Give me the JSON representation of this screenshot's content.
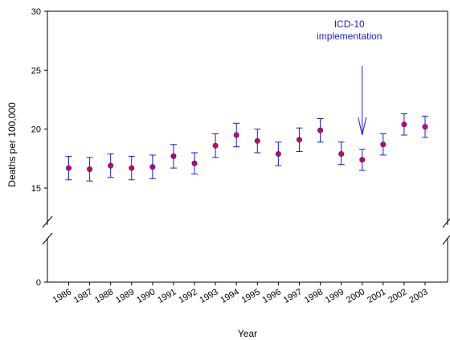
{
  "chart_data": {
    "type": "scatter",
    "xlabel": "Year",
    "ylabel": "Deaths per 100,000",
    "x": [
      "1986",
      "1987",
      "1988",
      "1989",
      "1990",
      "1991",
      "1992",
      "1993",
      "1994",
      "1995",
      "1996",
      "1997",
      "1998",
      "1999",
      "2000",
      "2001",
      "2002",
      "2003"
    ],
    "values": [
      16.7,
      16.6,
      16.9,
      16.7,
      16.8,
      17.7,
      17.1,
      18.6,
      19.5,
      19.0,
      17.9,
      19.1,
      19.9,
      17.9,
      17.4,
      18.7,
      20.4,
      20.2
    ],
    "error_low": [
      15.7,
      15.6,
      15.9,
      15.7,
      15.8,
      16.7,
      16.2,
      17.6,
      18.5,
      18.0,
      16.9,
      18.1,
      18.9,
      17.0,
      16.5,
      17.8,
      19.5,
      19.3
    ],
    "error_high": [
      17.7,
      17.6,
      17.9,
      17.7,
      17.8,
      18.7,
      18.0,
      19.6,
      20.5,
      20.0,
      18.9,
      20.1,
      20.9,
      18.9,
      18.3,
      19.6,
      21.3,
      21.1
    ],
    "y_ticks": [
      "0",
      "15",
      "20",
      "25",
      "30"
    ],
    "ylim_upper": [
      12,
      30
    ],
    "ylim_lower": [
      0,
      3
    ],
    "axis_break": true,
    "grid": false,
    "marker_color": "#d4004f",
    "errorbar_color": "#1a1adb",
    "annotation": {
      "line1": "ICD-10",
      "line2": "implementation",
      "x": "2000",
      "color": "#1a1adb"
    }
  }
}
